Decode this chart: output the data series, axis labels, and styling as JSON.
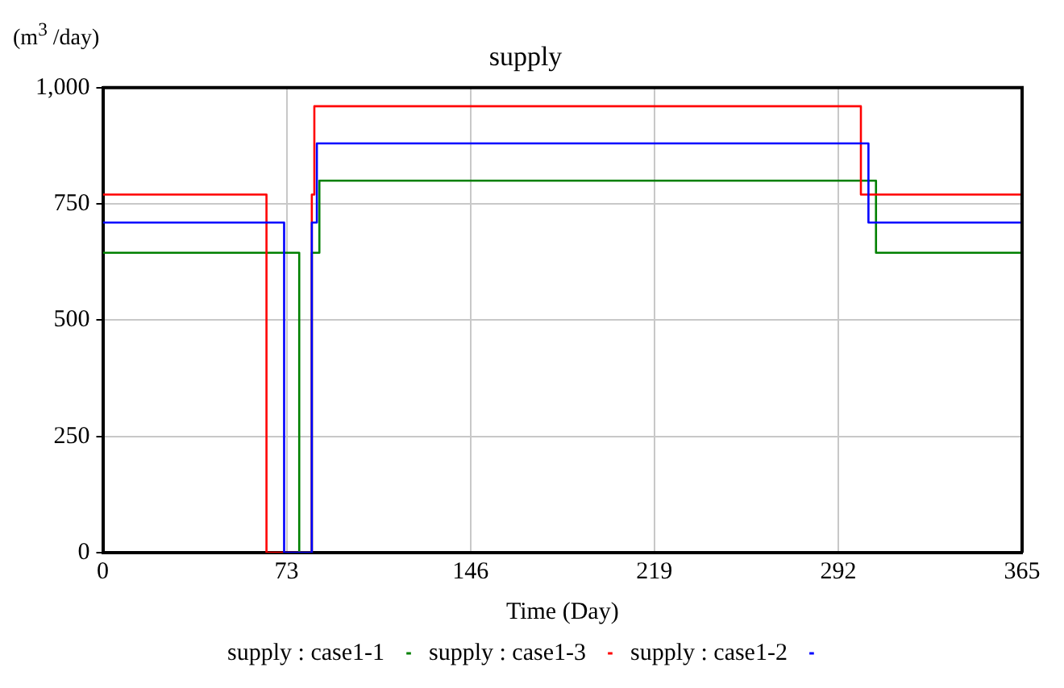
{
  "chart_data": {
    "type": "step",
    "title": "supply",
    "ylabel": "(m$^{3}$ /day)",
    "xlabel": "Time (Day)",
    "xlim": [
      0,
      365
    ],
    "xticks": [
      0,
      73,
      146,
      219,
      292,
      365
    ],
    "ylim": [
      0,
      1000
    ],
    "yticks": [
      0,
      250,
      500,
      750,
      {
        "value": 1000,
        "label": "1,000"
      }
    ],
    "grid": true,
    "legend": "bottom",
    "series": [
      {
        "name": "supply : case1-2",
        "color": "#0000ff",
        "x": [
          0,
          72,
          83,
          85,
          304,
          365
        ],
        "values": [
          710,
          0,
          710,
          880,
          710,
          710
        ]
      },
      {
        "name": "supply : case1-3",
        "color": "#ff0000",
        "x": [
          0,
          65,
          83,
          84,
          301,
          365
        ],
        "values": [
          770,
          0,
          770,
          960,
          770,
          770
        ]
      },
      {
        "name": "supply : case1-1",
        "color": "#008000",
        "x": [
          0,
          78,
          83,
          86,
          307,
          365
        ],
        "values": [
          645,
          0,
          645,
          800,
          645,
          645
        ]
      }
    ]
  }
}
